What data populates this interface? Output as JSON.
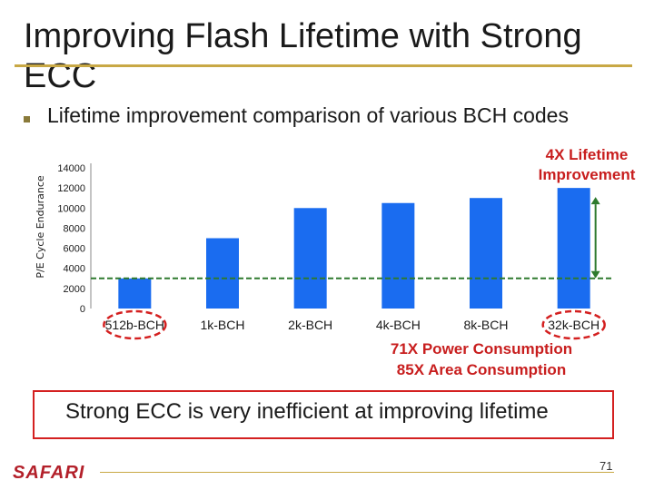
{
  "slide": {
    "title": "Improving Flash Lifetime with Strong ECC",
    "bullet": "Lifetime improvement comparison of various BCH codes",
    "conclusion": "Strong ECC is very inefficient at improving lifetime",
    "logo": "SAFARI",
    "page_number": "71"
  },
  "annotations": {
    "top_right": "4X Lifetime Improvement",
    "power": "71X Power Consumption",
    "area": "85X Area Consumption"
  },
  "colors": {
    "bar": "#1a6cf0",
    "dashed_line": "#2e7a2e",
    "arrow": "#2e7a2e",
    "highlight": "#d42020",
    "annotation": "#c81e1e"
  },
  "chart_data": {
    "type": "bar",
    "categories": [
      "512b-BCH",
      "1k-BCH",
      "2k-BCH",
      "4k-BCH",
      "8k-BCH",
      "32k-BCH"
    ],
    "values": [
      3000,
      7000,
      10000,
      10500,
      11000,
      12000
    ],
    "ylabel": "P/E Cycle Endurance",
    "ylim": [
      0,
      14000
    ],
    "yticks": [
      0,
      2000,
      4000,
      6000,
      8000,
      10000,
      12000,
      14000
    ],
    "reference_line": 3000,
    "highlighted_categories": [
      "512b-BCH",
      "32k-BCH"
    ],
    "grid": false,
    "legend": "none"
  }
}
